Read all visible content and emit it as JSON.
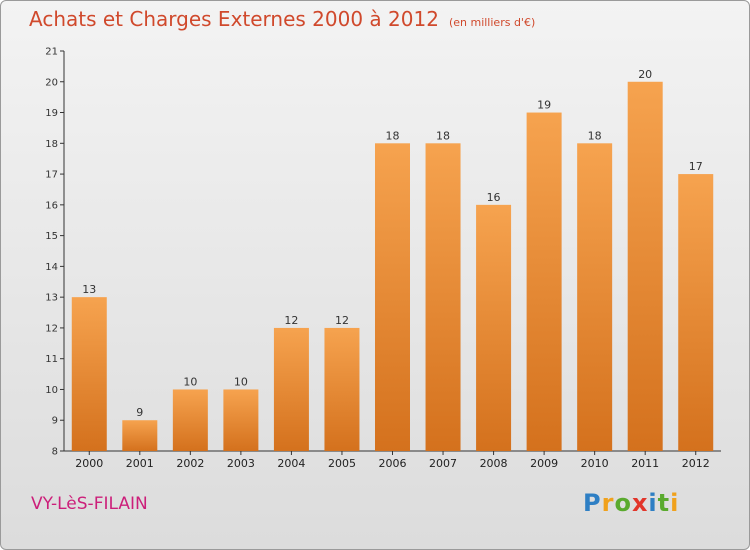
{
  "header": {
    "title": "Achats et Charges Externes 2000 à 2012",
    "subtitle": "(en milliers d'€)"
  },
  "footer": {
    "commune": "VY-LèS-FILAIN",
    "logo_letters": [
      {
        "ch": "P",
        "color": "#2e7fc4"
      },
      {
        "ch": "r",
        "color": "#f0a11c"
      },
      {
        "ch": "o",
        "color": "#5aaa2e"
      },
      {
        "ch": "x",
        "color": "#e2352a"
      },
      {
        "ch": "i",
        "color": "#2e7fc4"
      },
      {
        "ch": "t",
        "color": "#5aaa2e"
      },
      {
        "ch": "i",
        "color": "#f0a11c"
      }
    ]
  },
  "colors": {
    "bar_top": "#f6a34f",
    "bar_bottom": "#d4711d",
    "title": "#d0492c",
    "commune": "#cc1f7a"
  },
  "chart_data": {
    "type": "bar",
    "title": "Achats et Charges Externes 2000 à 2012",
    "subtitle": "(en milliers d'€)",
    "categories": [
      "2000",
      "2001",
      "2002",
      "2003",
      "2004",
      "2005",
      "2006",
      "2007",
      "2008",
      "2009",
      "2010",
      "2011",
      "2012"
    ],
    "values": [
      13,
      9,
      10,
      10,
      12,
      12,
      18,
      18,
      16,
      19,
      18,
      20,
      17
    ],
    "ylim": [
      8,
      21
    ],
    "yticks": [
      8,
      9,
      10,
      11,
      12,
      13,
      14,
      15,
      16,
      17,
      18,
      19,
      20,
      21
    ],
    "grid": false,
    "xlabel": "",
    "ylabel": ""
  }
}
